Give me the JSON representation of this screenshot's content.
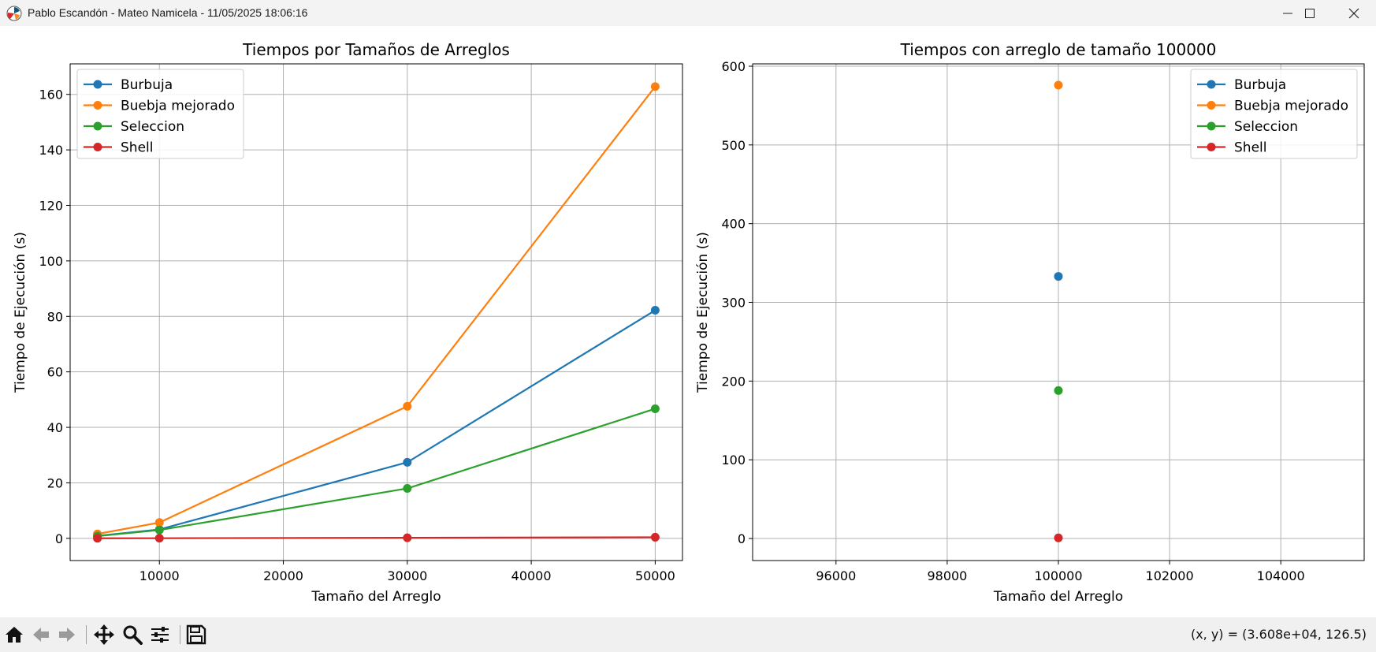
{
  "window": {
    "title": "Pablo Escandón - Mateo Namicela - 11/05/2025 18:06:16",
    "app_icon": "matplotlib-figure-icon",
    "controls": [
      "minimize-icon",
      "maximize-icon",
      "close-icon"
    ]
  },
  "toolbar": {
    "tools": [
      "home-icon",
      "back-arrow-icon",
      "forward-arrow-icon",
      "pan-move-icon",
      "zoom-magnifier-icon",
      "configure-subplots-icon",
      "save-disk-icon"
    ],
    "coordinates": "(x, y) = (3.608e+04, 126.5)"
  },
  "colors": {
    "Burbuja": "#1f77b4",
    "Buebja mejorado": "#ff7f0e",
    "Seleccion": "#2ca02c",
    "Shell": "#d62728"
  },
  "chart_data": [
    {
      "type": "line",
      "title": "Tiempos por Tamaños de Arreglos",
      "xlabel": "Tamaño del Arreglo",
      "ylabel": "Tiempo de Ejecución (s)",
      "xlim": [
        2800,
        52200
      ],
      "ylim": [
        -8,
        171
      ],
      "xticks": [
        10000,
        20000,
        30000,
        40000,
        50000
      ],
      "yticks": [
        0,
        20,
        40,
        60,
        80,
        100,
        120,
        140,
        160
      ],
      "grid": true,
      "legend": "upper-left",
      "x": [
        5000,
        10000,
        30000,
        50000
      ],
      "series": [
        {
          "name": "Burbuja",
          "values": [
            0.9,
            3.2,
            27.4,
            82.2
          ]
        },
        {
          "name": "Buebja mejorado",
          "values": [
            1.6,
            5.7,
            47.6,
            162.8
          ]
        },
        {
          "name": "Seleccion",
          "values": [
            0.8,
            3.0,
            18.0,
            46.7
          ]
        },
        {
          "name": "Shell",
          "values": [
            0.02,
            0.05,
            0.2,
            0.4
          ]
        }
      ]
    },
    {
      "type": "scatter",
      "title": "Tiempos con arreglo de tamaño 100000",
      "xlabel": "Tamaño del Arreglo",
      "ylabel": "Tiempo de Ejecución (s)",
      "xlim": [
        94500,
        105500
      ],
      "ylim": [
        -28,
        603
      ],
      "xticks": [
        96000,
        98000,
        100000,
        102000,
        104000
      ],
      "yticks": [
        0,
        100,
        200,
        300,
        400,
        500,
        600
      ],
      "grid": true,
      "legend": "upper-right",
      "x": [
        100000
      ],
      "series": [
        {
          "name": "Burbuja",
          "values": [
            333
          ]
        },
        {
          "name": "Buebja mejorado",
          "values": [
            576
          ]
        },
        {
          "name": "Seleccion",
          "values": [
            188
          ]
        },
        {
          "name": "Shell",
          "values": [
            0.8
          ]
        }
      ]
    }
  ]
}
